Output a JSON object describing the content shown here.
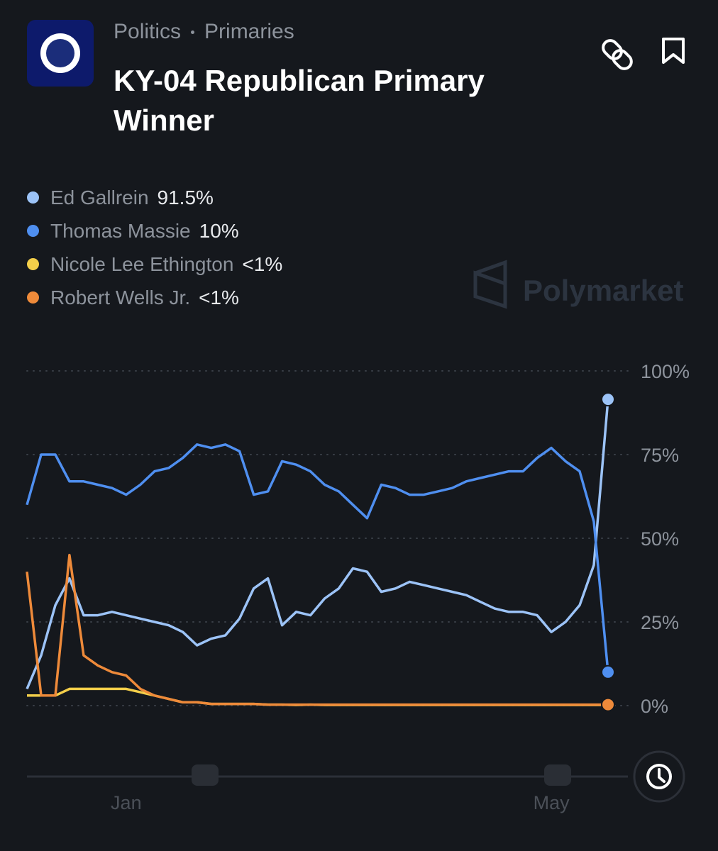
{
  "header": {
    "breadcrumb": [
      "Politics",
      "Primaries"
    ],
    "title": "KY-04 Republican Primary Winner"
  },
  "watermark": "Polymarket",
  "chart_data": {
    "type": "line",
    "categories": [
      null,
      null,
      null,
      null,
      null,
      null,
      null,
      "Jan",
      null,
      null,
      null,
      null,
      null,
      null,
      null,
      null,
      null,
      null,
      null,
      null,
      null,
      null,
      null,
      null,
      null,
      null,
      null,
      null,
      null,
      null,
      null,
      null,
      null,
      null,
      null,
      null,
      null,
      "May",
      null,
      null,
      null,
      null
    ],
    "series": [
      {
        "name": "Ed Gallrein",
        "color": "#9cc3f7",
        "value_label": "91.5%",
        "values": [
          5,
          15,
          30,
          38,
          27,
          27,
          28,
          27,
          26,
          25,
          24,
          22,
          18,
          20,
          21,
          26,
          35,
          38,
          24,
          28,
          27,
          32,
          35,
          41,
          40,
          34,
          35,
          37,
          36,
          35,
          34,
          33,
          31,
          29,
          28,
          28,
          27,
          22,
          25,
          30,
          42,
          91.5
        ]
      },
      {
        "name": "Thomas Massie",
        "color": "#4f8ff0",
        "value_label": "10%",
        "values": [
          60,
          75,
          75,
          67,
          67,
          66,
          65,
          63,
          66,
          70,
          71,
          74,
          78,
          77,
          78,
          76,
          63,
          64,
          73,
          72,
          70,
          66,
          64,
          60,
          56,
          66,
          65,
          63,
          63,
          64,
          65,
          67,
          68,
          69,
          70,
          70,
          74,
          77,
          73,
          70,
          55,
          10
        ]
      },
      {
        "name": "Nicole Lee Ethington",
        "color": "#f4cf4a",
        "value_label": "<1%",
        "values": [
          3,
          3,
          3,
          5,
          5,
          5,
          5,
          5,
          4,
          3,
          2,
          1,
          1,
          0.5,
          0.5,
          0.5,
          0.5,
          0.3,
          0.3,
          0.2,
          0.3,
          0.2,
          0.2,
          0.2,
          0.2,
          0.2,
          0.2,
          0.2,
          0.2,
          0.2,
          0.2,
          0.2,
          0.2,
          0.2,
          0.2,
          0.2,
          0.2,
          0.2,
          0.2,
          0.2,
          0.2,
          0.2
        ]
      },
      {
        "name": "Robert Wells Jr.",
        "color": "#ee8a3a",
        "value_label": "<1%",
        "values": [
          40,
          3,
          3,
          45,
          15,
          12,
          10,
          9,
          5,
          3,
          2,
          1,
          1,
          0.5,
          0.5,
          0.5,
          0.5,
          0.3,
          0.3,
          0.3,
          0.3,
          0.3,
          0.3,
          0.3,
          0.3,
          0.3,
          0.3,
          0.3,
          0.3,
          0.3,
          0.3,
          0.3,
          0.3,
          0.3,
          0.3,
          0.3,
          0.3,
          0.3,
          0.3,
          0.3,
          0.3,
          0.3
        ]
      }
    ],
    "ylim": [
      0,
      100
    ],
    "yticks": [
      {
        "value": 0,
        "label": "0%"
      },
      {
        "value": 25,
        "label": "25%"
      },
      {
        "value": 50,
        "label": "50%"
      },
      {
        "value": 75,
        "label": "75%"
      },
      {
        "value": 100,
        "label": "100%"
      }
    ],
    "grid": true
  }
}
